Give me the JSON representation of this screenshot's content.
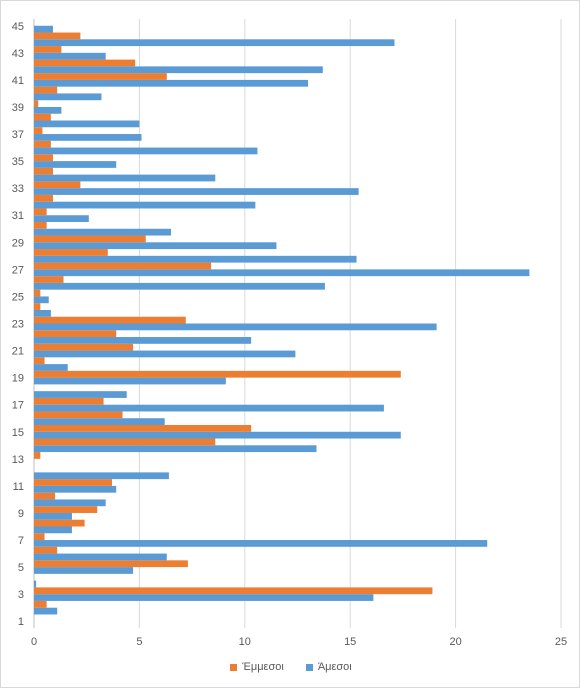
{
  "chart_data": {
    "type": "bar",
    "orientation": "horizontal",
    "categories": [
      1,
      2,
      3,
      4,
      5,
      6,
      7,
      8,
      9,
      10,
      11,
      12,
      13,
      14,
      15,
      16,
      17,
      18,
      19,
      20,
      21,
      22,
      23,
      24,
      25,
      26,
      27,
      28,
      29,
      30,
      31,
      32,
      33,
      34,
      35,
      36,
      37,
      38,
      39,
      40,
      41,
      42,
      43,
      44,
      45
    ],
    "category_tick_labels": [
      "1",
      "",
      "3",
      "",
      "5",
      "",
      "7",
      "",
      "9",
      "",
      "11",
      "",
      "13",
      "",
      "15",
      "",
      "17",
      "",
      "19",
      "",
      "21",
      "",
      "23",
      "",
      "25",
      "",
      "27",
      "",
      "29",
      "",
      "31",
      "",
      "33",
      "",
      "35",
      "",
      "37",
      "",
      "39",
      "",
      "41",
      "",
      "43",
      "",
      "45"
    ],
    "series": [
      {
        "name": "Άμεσοι",
        "color": "#5b9bd5",
        "values": [
          0.0,
          1.1,
          16.1,
          0.1,
          4.7,
          6.3,
          21.5,
          1.8,
          1.8,
          3.4,
          3.9,
          6.4,
          0.0,
          13.4,
          17.4,
          6.2,
          16.6,
          4.4,
          9.1,
          1.6,
          12.4,
          10.3,
          19.1,
          0.8,
          0.7,
          13.8,
          23.5,
          15.3,
          11.5,
          6.5,
          2.6,
          10.5,
          15.4,
          8.6,
          3.9,
          10.6,
          5.1,
          5.0,
          1.3,
          3.2,
          13.0,
          13.7,
          3.4,
          17.1,
          0.9
        ]
      },
      {
        "name": "Έμμεσοι",
        "color": "#ed7d31",
        "values": [
          0.0,
          0.6,
          18.9,
          0.0,
          7.3,
          1.1,
          0.5,
          2.4,
          3.0,
          1.0,
          3.7,
          0.0,
          0.3,
          8.6,
          10.3,
          4.2,
          3.3,
          0.0,
          17.4,
          0.5,
          4.7,
          3.9,
          7.2,
          0.3,
          0.3,
          1.4,
          8.4,
          3.5,
          5.3,
          0.6,
          0.6,
          0.9,
          2.2,
          0.9,
          0.9,
          0.8,
          0.4,
          0.8,
          0.2,
          1.1,
          6.3,
          4.8,
          1.3,
          2.2,
          0.0
        ]
      }
    ],
    "xlim": [
      0,
      25
    ],
    "x_ticks": [
      0,
      5,
      10,
      15,
      20,
      25
    ],
    "xlabel": "",
    "ylabel": "",
    "title": "",
    "grid": true,
    "legend_position": "bottom",
    "legend_order": [
      "Έμμεσοι",
      "Άμεσοι"
    ]
  }
}
